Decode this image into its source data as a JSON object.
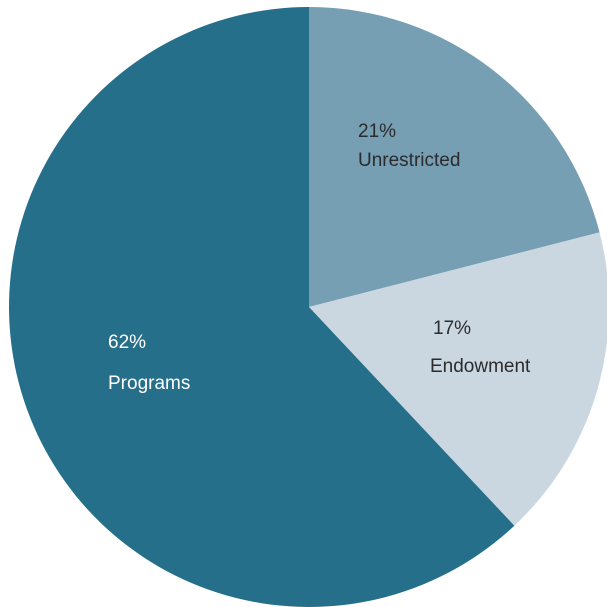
{
  "chart_data": {
    "type": "pie",
    "title": "",
    "start": "top, clockwise",
    "slices": [
      {
        "label": "Unrestricted",
        "percent_label": "21%",
        "value": 21,
        "color": "#769fb4",
        "text_color": "#2b2b2b"
      },
      {
        "label": "Endowment",
        "percent_label": "17%",
        "value": 17,
        "color": "#cad7e1",
        "text_color": "#2b2b2b"
      },
      {
        "label": "Programs",
        "percent_label": "62%",
        "value": 62,
        "color": "#266f8a",
        "text_color": "#ffffff"
      }
    ]
  }
}
